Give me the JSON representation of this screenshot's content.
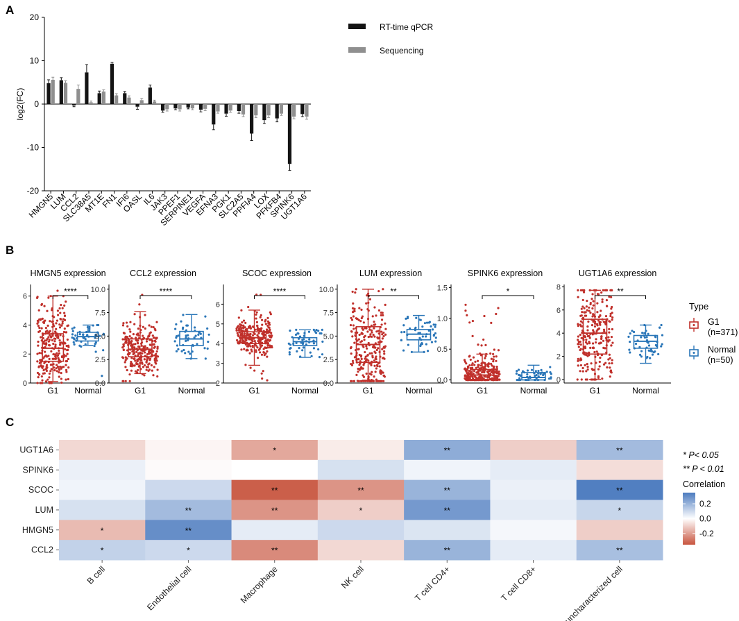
{
  "panels": {
    "A": "A",
    "B": "B",
    "C": "C"
  },
  "chart_data": [
    {
      "panel": "A",
      "type": "bar",
      "title": "",
      "xlabel": "",
      "ylabel": "log2(FC)",
      "ylim": [
        -20,
        20
      ],
      "yticks": [
        "20",
        "10",
        "0",
        "-10",
        "-20"
      ],
      "yticks_values": [
        20,
        10,
        0,
        -10,
        -20
      ],
      "legend": [
        "RT-time qPCR",
        "Sequencing"
      ],
      "categories": [
        "HMGN5",
        "LUM",
        "CCL2",
        "SLC38A5",
        "MT1E",
        "FN1",
        "IFI6",
        "OASL",
        "IL6",
        "JAK3",
        "PPEF1",
        "SERPINE1",
        "VEGFA",
        "EFNA3",
        "PGK1",
        "SLC2A5",
        "PPFIA4",
        "LOX",
        "PFKFB4",
        "SPINK6",
        "UGT1A6"
      ],
      "series": [
        {
          "name": "RT-time qPCR",
          "color": "#141414",
          "values": [
            4.8,
            5.5,
            -0.3,
            7.3,
            2.5,
            9.3,
            2.5,
            -0.6,
            3.8,
            -1.5,
            -1.0,
            -0.8,
            -1.3,
            -4.7,
            -2.2,
            -1.6,
            -6.8,
            -3.7,
            -3.3,
            -13.8,
            -2.3
          ],
          "errors": [
            0.8,
            0.6,
            0.3,
            1.8,
            0.5,
            0.3,
            0.4,
            0.6,
            0.6,
            0.4,
            0.3,
            0.3,
            0.5,
            1.2,
            0.6,
            0.5,
            1.6,
            0.8,
            0.8,
            1.5,
            0.6
          ]
        },
        {
          "name": "Sequencing",
          "color": "#8f8f8f",
          "values": [
            5.6,
            4.9,
            3.5,
            0.4,
            2.9,
            2.0,
            1.5,
            0.9,
            0.6,
            -1.2,
            -1.2,
            -1.0,
            -1.1,
            -1.7,
            -1.5,
            -2.4,
            -2.6,
            -2.6,
            -2.2,
            -2.9,
            -2.9
          ],
          "errors": [
            0.6,
            0.5,
            0.9,
            0.3,
            0.4,
            0.4,
            0.4,
            0.4,
            0.3,
            0.4,
            0.4,
            0.3,
            0.4,
            0.4,
            0.4,
            0.5,
            0.5,
            0.5,
            0.4,
            0.5,
            0.6
          ]
        }
      ]
    },
    {
      "panel": "B",
      "type": "box",
      "groups": [
        "G1",
        "Normal"
      ],
      "legend_title": "Type",
      "legend": [
        {
          "label": "G1",
          "n": "(n=371)",
          "color": "#c0302b"
        },
        {
          "label": "Normal",
          "n": "(n=50)",
          "color": "#2a76b8"
        }
      ],
      "plots": [
        {
          "title": "HMGN5 expression",
          "sig": "****",
          "ylim": [
            0,
            6.8
          ],
          "yticks": [
            0,
            2,
            4,
            6
          ],
          "ytick_labels": [
            "0",
            "2",
            "4",
            "6"
          ],
          "g1": {
            "min": 0.1,
            "q1": 1.5,
            "median": 2.4,
            "q3": 3.4,
            "max": 6.0,
            "spread": [
              0.0,
              6.6
            ]
          },
          "normal": {
            "min": 2.6,
            "q1": 2.9,
            "median": 3.2,
            "q3": 3.5,
            "max": 4.0,
            "spread": [
              0.0,
              4.0
            ]
          }
        },
        {
          "title": "CCL2 expression",
          "sig": "****",
          "ylim": [
            0,
            10.5
          ],
          "yticks": [
            0,
            2.5,
            5,
            7.5,
            10
          ],
          "ytick_labels": [
            "0.0",
            "2.5",
            "5.0",
            "7.5",
            "10.0"
          ],
          "g1": {
            "min": 1.0,
            "q1": 2.8,
            "median": 3.6,
            "q3": 4.7,
            "max": 7.6,
            "spread": [
              0.2,
              10.2
            ]
          },
          "normal": {
            "min": 2.6,
            "q1": 4.0,
            "median": 4.7,
            "q3": 5.5,
            "max": 7.3,
            "spread": [
              2.6,
              7.3
            ]
          }
        },
        {
          "title": "SCOC expression",
          "sig": "****",
          "ylim": [
            2,
            7
          ],
          "yticks": [
            2,
            3,
            4,
            5,
            6
          ],
          "ytick_labels": [
            "2",
            "3",
            "4",
            "5",
            "6"
          ],
          "g1": {
            "min": 2.9,
            "q1": 4.0,
            "median": 4.3,
            "q3": 4.6,
            "max": 5.7,
            "spread": [
              2.0,
              6.6
            ]
          },
          "normal": {
            "min": 3.3,
            "q1": 3.9,
            "median": 4.1,
            "q3": 4.3,
            "max": 4.7,
            "spread": [
              3.3,
              4.7
            ]
          }
        },
        {
          "title": "LUM expression",
          "sig": "**",
          "ylim": [
            0,
            10.5
          ],
          "yticks": [
            0,
            2.5,
            5,
            7.5,
            10
          ],
          "ytick_labels": [
            "0.0",
            "2.5",
            "5.0",
            "7.5",
            "10.0"
          ],
          "g1": {
            "min": 0.3,
            "q1": 2.2,
            "median": 4.1,
            "q3": 6.0,
            "max": 10.0,
            "spread": [
              0.2,
              10.0
            ]
          },
          "normal": {
            "min": 3.3,
            "q1": 4.6,
            "median": 5.2,
            "q3": 5.7,
            "max": 7.2,
            "spread": [
              3.3,
              7.2
            ]
          }
        },
        {
          "title": "SPINK6 expression",
          "sig": "*",
          "ylim": [
            -0.05,
            1.55
          ],
          "yticks": [
            0,
            0.5,
            1,
            1.5
          ],
          "ytick_labels": [
            "0.0",
            "0.5",
            "1.0",
            "1.5"
          ],
          "g1": {
            "min": 0.0,
            "q1": 0.0,
            "median": 0.08,
            "q3": 0.17,
            "max": 0.42,
            "spread": [
              0.0,
              1.3
            ]
          },
          "normal": {
            "min": 0.0,
            "q1": 0.0,
            "median": 0.04,
            "q3": 0.12,
            "max": 0.24,
            "spread": [
              0.0,
              0.34
            ]
          }
        },
        {
          "title": "UGT1A6 expression",
          "sig": "**",
          "ylim": [
            -0.3,
            8.2
          ],
          "yticks": [
            0,
            2,
            4,
            6,
            8
          ],
          "ytick_labels": [
            "0",
            "2",
            "4",
            "6",
            "8"
          ],
          "g1": {
            "min": 0.0,
            "q1": 2.2,
            "median": 4.0,
            "q3": 5.2,
            "max": 7.7,
            "spread": [
              0.0,
              7.9
            ]
          },
          "normal": {
            "min": 1.4,
            "q1": 2.7,
            "median": 3.3,
            "q3": 3.8,
            "max": 4.7,
            "spread": [
              1.4,
              4.7
            ]
          }
        }
      ]
    },
    {
      "panel": "C",
      "type": "heatmap",
      "rows": [
        "UGT1A6",
        "SPINK6",
        "SCOC",
        "LUM",
        "HMGN5",
        "CCL2"
      ],
      "cols": [
        "B cell",
        "Endothelial cell",
        "Macrophage",
        "NK cell",
        "T cell CD4+",
        "T cell CD8+",
        "uncharacterized cell"
      ],
      "values": [
        [
          -0.08,
          -0.02,
          -0.18,
          -0.04,
          0.22,
          -0.1,
          0.18
        ],
        [
          0.04,
          -0.01,
          0.0,
          0.08,
          0.03,
          0.05,
          -0.07
        ],
        [
          0.03,
          0.1,
          -0.33,
          -0.22,
          0.2,
          0.04,
          0.34
        ],
        [
          0.08,
          0.18,
          -0.22,
          -0.1,
          0.27,
          0.05,
          0.11
        ],
        [
          -0.14,
          0.3,
          0.05,
          0.1,
          0.07,
          0.02,
          -0.1
        ],
        [
          0.12,
          0.1,
          -0.24,
          -0.08,
          0.2,
          0.05,
          0.17
        ]
      ],
      "stars": [
        [
          "",
          "",
          "*",
          "",
          "**",
          "",
          "**"
        ],
        [
          "",
          "",
          "",
          "",
          "",
          "",
          ""
        ],
        [
          "",
          "",
          "**",
          "**",
          "**",
          "",
          "**"
        ],
        [
          "",
          "**",
          "**",
          "*",
          "**",
          "",
          "*"
        ],
        [
          "*",
          "**",
          "",
          "",
          "",
          "",
          ""
        ],
        [
          "*",
          "*",
          "**",
          "",
          "**",
          "",
          "**"
        ]
      ],
      "legend_notes": [
        "* P< 0.05",
        "** P < 0.01"
      ],
      "legend_title": "Correlation",
      "legend_ticks": [
        "0.2",
        "0.0",
        "-0.2"
      ],
      "legend_tick_values": [
        0.2,
        0.0,
        -0.2
      ],
      "range": [
        -0.35,
        0.35
      ],
      "color_low": "#c8553f",
      "color_mid": "#ffffff",
      "color_high": "#4c7bbf"
    }
  ]
}
